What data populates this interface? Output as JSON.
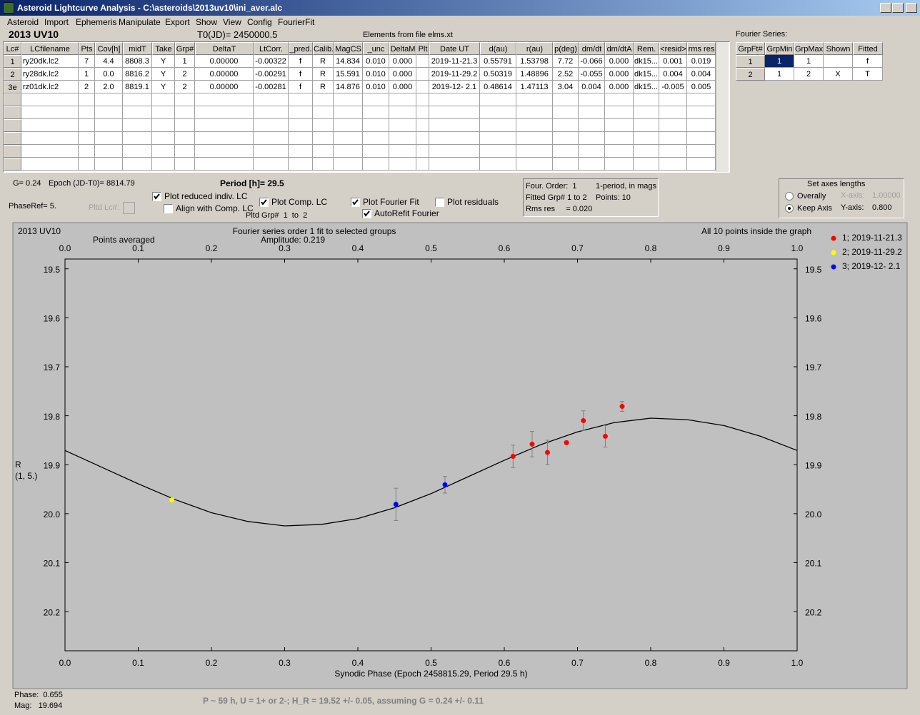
{
  "window": {
    "title": "Asteroid Lightcurve Analysis - C:\\asteroids\\2013uv10\\ini_aver.alc",
    "menu": [
      "Asteroid",
      "Import",
      "Ephemeris",
      "Manipulate",
      "Export",
      "Show",
      "View",
      "Config",
      "FourierFit"
    ]
  },
  "header": {
    "object": "2013 UV10",
    "t0": "T0(JD)= 2450000.5",
    "elements": "Elements from file elms.xt"
  },
  "lc_table": {
    "columns": [
      "Lc#",
      "LCfilename",
      "Pts",
      "Cov[h]",
      "midT",
      "Take",
      "Grp#",
      "DeltaT",
      "LtCorr.",
      "_pred.",
      "Calib.",
      "MagCS",
      "_unc",
      "DeltaM",
      "Plt",
      "Date UT",
      "d(au)",
      "r(au)",
      "p(deg)",
      "dm/dt",
      "dm/dtA",
      "Rem.",
      "<resid>",
      "rms res"
    ],
    "rows": [
      [
        "1",
        "ry20dk.lc2",
        "7",
        "4.4",
        "8808.3",
        "Y",
        "1",
        "0.00000",
        "-0.00322",
        "f",
        "R",
        "14.834",
        "0.010",
        "0.000",
        null,
        "2019-11-21.3",
        "0.55791",
        "1.53798",
        "7.72",
        "-0.066",
        "0.000",
        "dk15...",
        "0.001",
        "0.019"
      ],
      [
        "2",
        "ry28dk.lc2",
        "1",
        "0.0",
        "8816.2",
        "Y",
        "2",
        "0.00000",
        "-0.00291",
        "f",
        "R",
        "15.591",
        "0.010",
        "0.000",
        null,
        "2019-11-29.2",
        "0.50319",
        "1.48896",
        "2.52",
        "-0.055",
        "0.000",
        "dk15...",
        "0.004",
        "0.004"
      ],
      [
        "3e",
        "rz01dk.lc2",
        "2",
        "2.0",
        "8819.1",
        "Y",
        "2",
        "0.00000",
        "-0.00281",
        "f",
        "R",
        "14.876",
        "0.010",
        "0.000",
        null,
        "2019-12- 2.1",
        "0.48614",
        "1.47113",
        "3.04",
        "0.004",
        "0.000",
        "dk15...",
        "-0.005",
        "0.005"
      ]
    ]
  },
  "fourier_table": {
    "title": "Fourier Series:",
    "columns": [
      "GrpFt#",
      "GrpMin",
      "GrpMax",
      "Shown",
      "Fitted"
    ],
    "rows": [
      [
        "1",
        "1",
        "1",
        null,
        "f"
      ],
      [
        "2",
        "1",
        "2",
        "X",
        "T"
      ]
    ]
  },
  "controls": {
    "g": "G= 0.24",
    "epoch": "Epoch (JD-T0)= 8814.79",
    "period": "Period [h]= 29.5",
    "phase_ref": "PhaseRef= 5.",
    "pltd_lc": "Pltd Lc#:",
    "pltd_grp": "Pltd Grp#  1  to  2",
    "checkboxes": [
      {
        "label": "Plot reduced indiv. LC",
        "checked": true
      },
      {
        "label": "Align with Comp. LC",
        "checked": false
      },
      {
        "label": "Plot Comp. LC",
        "checked": true
      },
      {
        "label": "Plot Fourier Fit",
        "checked": true
      },
      {
        "label": "AutoRefit Fourier",
        "checked": true
      },
      {
        "label": "Plot residuals",
        "checked": false
      }
    ]
  },
  "info": {
    "lines": [
      "Four. Order:  1",
      "1-period, in mags",
      "Fitted Grp# 1 to 2",
      "Points: 10",
      "Rms res     = 0.020"
    ]
  },
  "axes_box": {
    "title": "Set axes lengths",
    "radios": [
      {
        "label": "Overally",
        "checked": false
      },
      {
        "label": "Keep Axis",
        "checked": true
      }
    ],
    "x_axis": "X-axis:",
    "x_value": "1.00000",
    "y_axis": "Y-axis:",
    "y_value": "0.800"
  },
  "chart_data": {
    "type": "scatter",
    "title": "2013 UV10",
    "annotations": [
      "Points averaged",
      "Fourier series order 1 fit to selected groups",
      "Amplitude: 0.219",
      "All 10 points inside the graph"
    ],
    "x_label": "Synodic Phase (Epoch 2458815.29, Period 29.5 h)",
    "y_label": [
      "R",
      "(1, 5.)"
    ],
    "xlim": [
      0,
      1
    ],
    "xticks": [
      {
        "value": 0,
        "label": "0.0"
      },
      0.1,
      0.2,
      0.3,
      0.4,
      0.5,
      0.6,
      0.7,
      0.8,
      0.9,
      {
        "value": 1,
        "label": "1.0"
      }
    ],
    "ylim": [
      19.48,
      20.28
    ],
    "y_inverted": true,
    "yticks": [
      19.5,
      19.6,
      19.7,
      19.8,
      19.9,
      {
        "value": 20,
        "label": "20.0"
      },
      20.1,
      20.2
    ],
    "series": [
      {
        "name": "1; 2019-11-21.3",
        "color": "#ff0000",
        "x": [
          0.612,
          0.638,
          0.659,
          0.685,
          0.708,
          0.738,
          0.761
        ],
        "values": [
          19.883,
          19.858,
          19.875,
          19.855,
          19.81,
          19.842,
          19.781
        ],
        "errors": [
          0.023,
          0.026,
          0.025,
          0.003,
          0.02,
          0.022,
          0.01
        ]
      },
      {
        "name": "2; 2019-11-29.2",
        "color": "#ffff00",
        "x": [
          0.146
        ],
        "values": [
          19.972
        ],
        "errors": [
          0.003
        ]
      },
      {
        "name": "3; 2019-12- 2.1",
        "color": "#0000ff",
        "x": [
          0.452,
          0.519
        ],
        "values": [
          19.981,
          19.941
        ],
        "errors": [
          0.033,
          0.017
        ]
      }
    ],
    "fit": {
      "color": "#000000",
      "x": [
        0,
        0.05,
        0.1,
        0.15,
        0.2,
        0.25,
        0.3,
        0.35,
        0.4,
        0.45,
        0.5,
        0.55,
        0.6,
        0.65,
        0.7,
        0.75,
        0.8,
        0.85,
        0.9,
        0.95,
        1
      ],
      "values": [
        19.871,
        19.905,
        19.939,
        19.971,
        19.998,
        20.016,
        20.025,
        20.022,
        20.01,
        19.988,
        19.959,
        19.925,
        19.891,
        19.859,
        19.833,
        19.814,
        19.805,
        19.808,
        19.82,
        19.842,
        19.871
      ]
    }
  },
  "status": {
    "phase": "Phase:  0.655",
    "mag": "Mag:   19.694",
    "result": "P ~ 59 h, U = 1+ or 2-; H_R = 19.52 +/- 0.05, assuming G = 0.24 +/- 0.11"
  }
}
